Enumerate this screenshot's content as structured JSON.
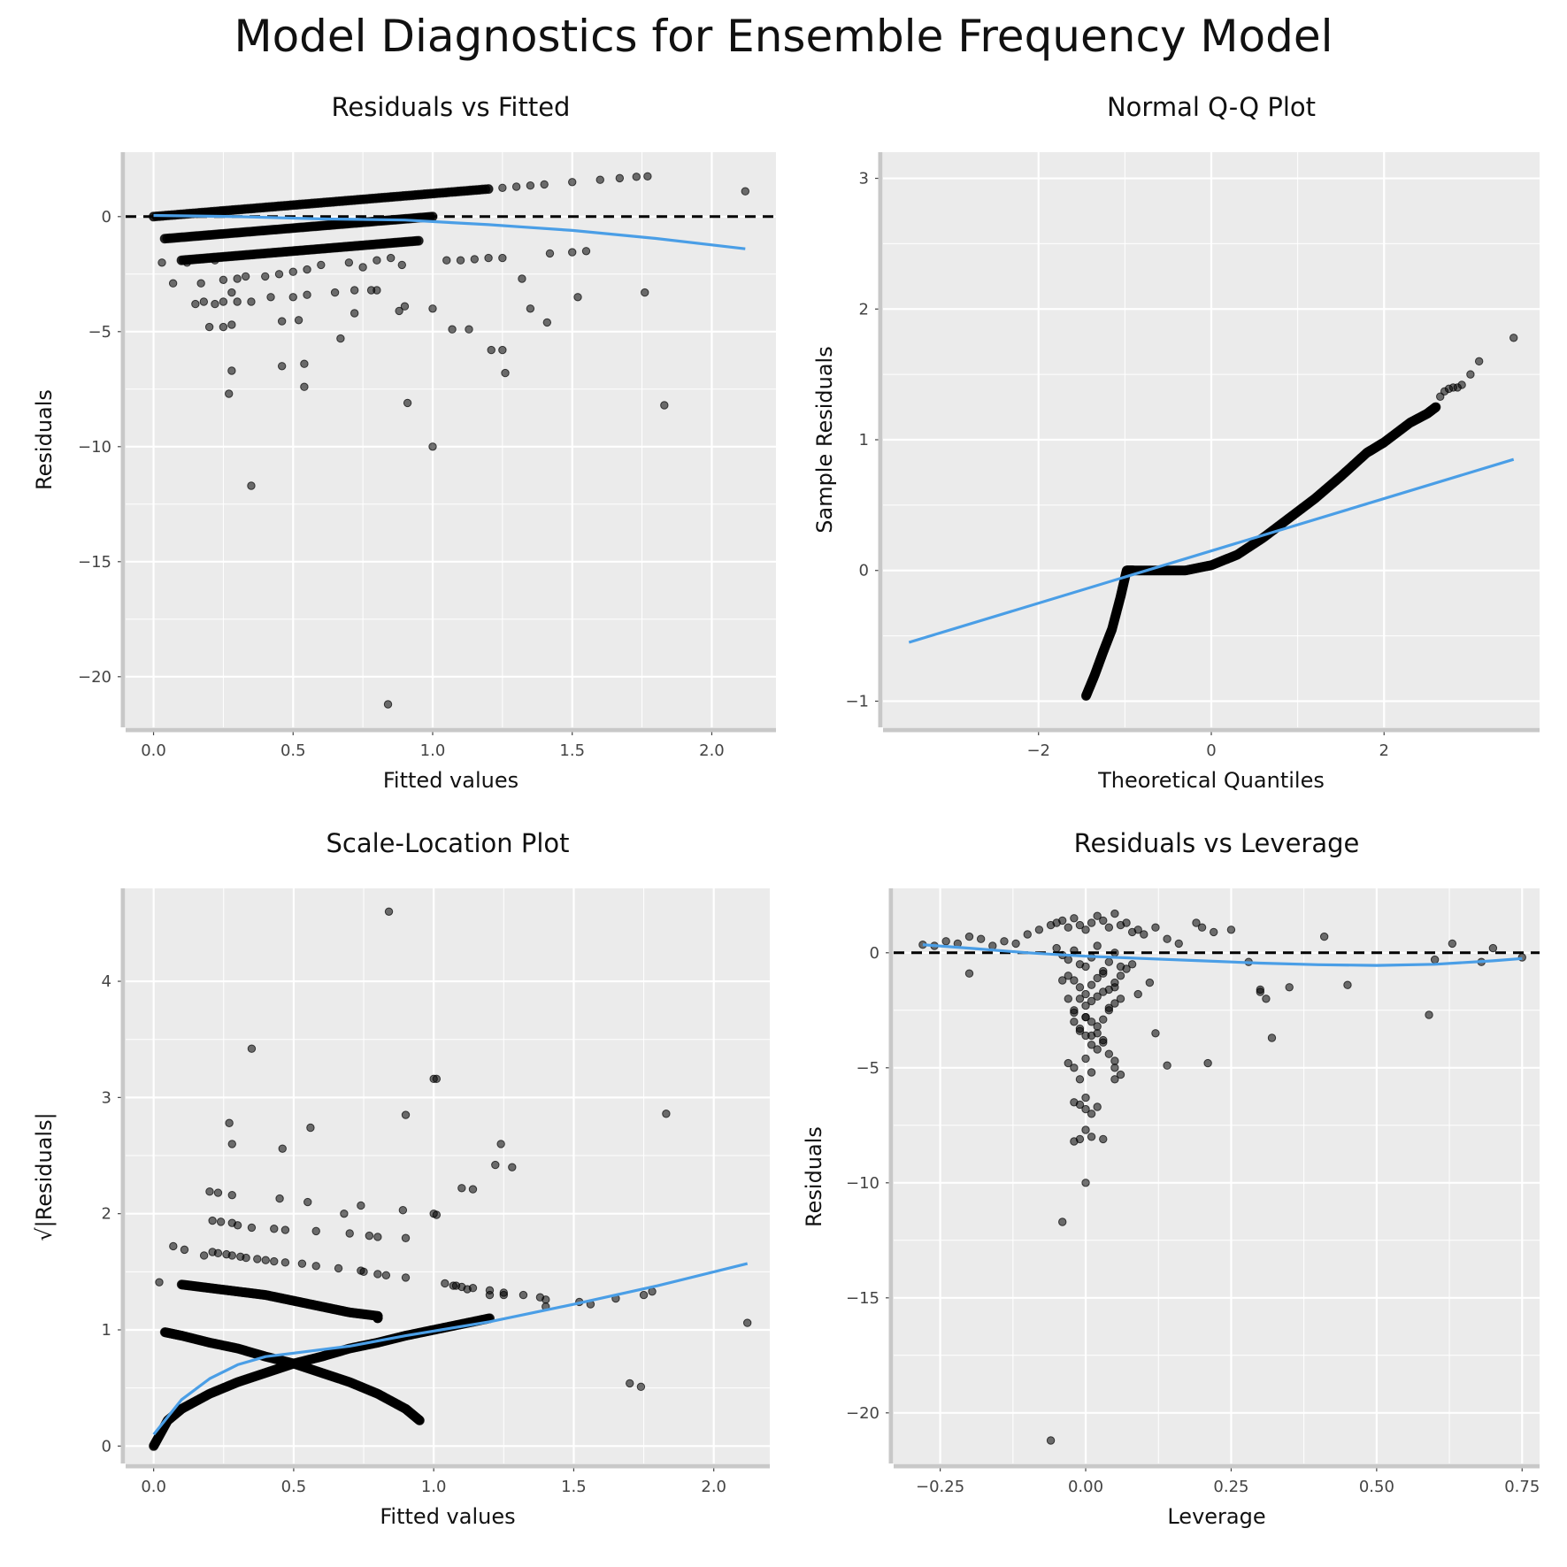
{
  "title": "Model Diagnostics for Ensemble Frequency Model",
  "colors": {
    "panel_bg": "#ebebeb",
    "grid": "#ffffff",
    "points": "#000000",
    "smooth": "#4a9ee6",
    "axis_line": "#c8c8c8",
    "refline": "#000000"
  },
  "chart_data": [
    {
      "type": "scatter",
      "title": "Residuals vs Fitted",
      "xlabel": "Fitted values",
      "ylabel": "Residuals",
      "xlim": [
        -0.1,
        2.23
      ],
      "ylim": [
        -22.2,
        2.8
      ],
      "xticks": [
        0.0,
        0.5,
        1.0,
        1.5,
        2.0
      ],
      "xtick_labels": [
        "0.0",
        "0.5",
        "1.0",
        "1.5",
        "2.0"
      ],
      "yticks": [
        -20,
        -15,
        -10,
        -5,
        0
      ],
      "ytick_labels": [
        "−20",
        "−15",
        "−10",
        "−5",
        "0"
      ],
      "grid": true,
      "reference_line": {
        "y": 0,
        "style": "dashed"
      },
      "series": [
        {
          "kind": "band",
          "x": [
            0.0,
            1.2
          ],
          "y": [
            0.0,
            1.2
          ]
        },
        {
          "kind": "band",
          "x": [
            0.04,
            1.0
          ],
          "y": [
            -0.96,
            0.0
          ]
        },
        {
          "kind": "band",
          "x": [
            0.1,
            0.95
          ],
          "y": [
            -1.9,
            -1.05
          ]
        },
        {
          "kind": "points",
          "x": [
            0.03,
            0.1,
            0.13,
            0.2,
            0.25,
            0.3,
            0.35,
            0.45,
            0.55,
            0.65,
            0.75,
            0.85,
            0.95,
            1.05,
            1.15,
            1.25,
            1.3,
            1.35,
            1.4,
            1.5,
            1.6,
            1.67,
            1.73,
            1.77,
            2.12,
            0.03,
            0.07,
            0.12,
            0.17,
            0.22,
            0.25,
            0.3,
            0.33,
            0.4,
            0.45,
            0.5,
            0.55,
            0.6,
            0.7,
            0.75,
            0.8,
            0.85,
            0.89,
            1.05,
            1.1,
            1.15,
            1.2,
            1.25,
            1.32,
            1.42,
            1.5,
            1.55,
            0.15,
            0.18,
            0.22,
            0.25,
            0.28,
            0.3,
            0.35,
            0.42,
            0.5,
            0.55,
            0.65,
            0.72,
            0.78,
            0.8,
            0.88,
            1.35,
            1.52,
            1.76,
            0.2,
            0.25,
            0.28,
            0.46,
            0.52,
            0.67,
            0.72,
            0.9,
            1.0,
            1.07,
            1.13,
            1.41,
            0.28,
            0.46,
            0.54,
            0.27,
            0.54,
            1.21,
            1.25,
            1.26,
            0.91,
            1.83,
            0.35,
            1.0,
            0.84
          ],
          "y": [
            0.03,
            0.1,
            0.13,
            0.2,
            0.25,
            0.3,
            0.35,
            0.45,
            0.55,
            0.65,
            0.75,
            0.85,
            0.95,
            1.05,
            1.15,
            1.25,
            1.3,
            1.35,
            1.4,
            1.5,
            1.6,
            1.67,
            1.73,
            1.75,
            1.1,
            -2.0,
            -2.9,
            -2.0,
            -2.9,
            -1.9,
            -2.75,
            -2.7,
            -2.6,
            -2.6,
            -2.5,
            -2.4,
            -2.3,
            -2.1,
            -2.0,
            -2.2,
            -1.9,
            -1.8,
            -2.1,
            -1.9,
            -1.9,
            -1.85,
            -1.8,
            -1.8,
            -2.7,
            -1.6,
            -1.55,
            -1.5,
            -3.8,
            -3.7,
            -3.8,
            -3.7,
            -3.3,
            -3.7,
            -3.7,
            -3.5,
            -3.5,
            -3.4,
            -3.3,
            -3.2,
            -3.2,
            -3.2,
            -4.1,
            -4.0,
            -3.5,
            -3.3,
            -4.8,
            -4.8,
            -4.7,
            -4.55,
            -4.5,
            -5.3,
            -4.2,
            -3.9,
            -4.0,
            -4.9,
            -4.9,
            -4.6,
            -6.7,
            -6.5,
            -6.4,
            -7.7,
            -7.4,
            -5.8,
            -5.8,
            -6.8,
            -8.1,
            -8.2,
            -11.7,
            -10.0,
            -21.2
          ]
        }
      ],
      "smooth": {
        "x": [
          0.0,
          0.3,
          0.6,
          0.9,
          1.2,
          1.5,
          1.8,
          2.12
        ],
        "y": [
          0.05,
          0.0,
          -0.1,
          -0.15,
          -0.35,
          -0.6,
          -0.95,
          -1.4
        ]
      }
    },
    {
      "type": "scatter",
      "title": "Normal Q-Q Plot",
      "xlabel": "Theoretical Quantiles",
      "ylabel": "Sample Residuals",
      "xlim": [
        -3.8,
        3.8
      ],
      "ylim": [
        -1.2,
        3.2
      ],
      "xticks": [
        -2,
        0,
        2
      ],
      "xtick_labels": [
        "−2",
        "0",
        "2"
      ],
      "yticks": [
        -1,
        0,
        1,
        2,
        3
      ],
      "ytick_labels": [
        "−1",
        "0",
        "1",
        "2",
        "3"
      ],
      "grid": true,
      "series": [
        {
          "kind": "curve",
          "x": [
            -1.45,
            -1.35,
            -1.25,
            -1.15,
            -1.05,
            -0.98,
            -0.9,
            -0.6,
            -0.3,
            0.0,
            0.3,
            0.6,
            0.9,
            1.2,
            1.5,
            1.8,
            2.0,
            2.3,
            2.5,
            2.6
          ],
          "y": [
            -0.96,
            -0.8,
            -0.62,
            -0.45,
            -0.2,
            0.0,
            0.0,
            0.0,
            0.0,
            0.04,
            0.12,
            0.25,
            0.4,
            0.55,
            0.72,
            0.9,
            0.98,
            1.13,
            1.2,
            1.25
          ]
        },
        {
          "kind": "points",
          "x": [
            2.65,
            2.7,
            2.75,
            2.8,
            2.85,
            2.9,
            3.0,
            3.1,
            3.5
          ],
          "y": [
            1.33,
            1.37,
            1.39,
            1.4,
            1.4,
            1.42,
            1.5,
            1.6,
            1.78
          ]
        }
      ],
      "smooth": {
        "x": [
          -3.5,
          3.5
        ],
        "y": [
          -0.55,
          0.85
        ]
      }
    },
    {
      "type": "scatter",
      "title": "Scale-Location Plot",
      "xlabel": "Fitted values",
      "ylabel": "√|Residuals|",
      "xlim": [
        -0.1,
        2.2
      ],
      "ylim": [
        -0.15,
        4.8
      ],
      "xticks": [
        0.0,
        0.5,
        1.0,
        1.5,
        2.0
      ],
      "xtick_labels": [
        "0.0",
        "0.5",
        "1.0",
        "1.5",
        "2.0"
      ],
      "yticks": [
        0,
        1,
        2,
        3,
        4
      ],
      "ytick_labels": [
        "0",
        "1",
        "2",
        "3",
        "4"
      ],
      "grid": true,
      "series": [
        {
          "kind": "curve",
          "x": [
            0.0,
            0.05,
            0.1,
            0.2,
            0.3,
            0.4,
            0.5,
            0.6,
            0.7,
            0.8,
            0.9,
            1.0,
            1.1,
            1.2
          ],
          "y": [
            0.0,
            0.22,
            0.32,
            0.45,
            0.55,
            0.63,
            0.71,
            0.77,
            0.84,
            0.89,
            0.95,
            1.0,
            1.05,
            1.1
          ]
        },
        {
          "kind": "curve",
          "x": [
            0.04,
            0.1,
            0.2,
            0.3,
            0.4,
            0.5,
            0.6,
            0.7,
            0.8,
            0.9,
            0.95
          ],
          "y": [
            0.98,
            0.95,
            0.89,
            0.84,
            0.77,
            0.71,
            0.63,
            0.55,
            0.45,
            0.32,
            0.22
          ]
        },
        {
          "kind": "curve",
          "x": [
            0.1,
            0.2,
            0.3,
            0.4,
            0.5,
            0.6,
            0.7,
            0.8,
            0.8
          ],
          "y": [
            1.39,
            1.36,
            1.33,
            1.3,
            1.25,
            1.2,
            1.15,
            1.12,
            1.1
          ]
        },
        {
          "kind": "points",
          "x": [
            0.02,
            0.07,
            0.11,
            0.18,
            0.21,
            0.23,
            0.26,
            0.28,
            0.31,
            0.33,
            0.37,
            0.4,
            0.43,
            0.47,
            0.53,
            0.58,
            0.66,
            0.74,
            0.75,
            0.8,
            0.83,
            0.9,
            1.04,
            1.07,
            1.1,
            1.14,
            1.2,
            1.25,
            1.32,
            1.38,
            1.4,
            1.52,
            1.56,
            1.65,
            1.75,
            1.78,
            2.12,
            0.21,
            0.24,
            0.28,
            0.3,
            0.35,
            0.43,
            0.47,
            0.58,
            0.7,
            0.77,
            0.8,
            0.9,
            1.0,
            1.08,
            1.12,
            1.2,
            1.25,
            1.4,
            0.2,
            0.23,
            0.28,
            0.45,
            0.55,
            0.68,
            0.74,
            0.89,
            1.01,
            1.1,
            1.14,
            1.22,
            1.28,
            0.27,
            0.28,
            0.46,
            0.56,
            0.9,
            1.01,
            1.24,
            1.83,
            0.35,
            1.0,
            0.84,
            1.7,
            1.74
          ],
          "y": [
            1.41,
            1.72,
            1.69,
            1.64,
            1.67,
            1.66,
            1.65,
            1.64,
            1.63,
            1.62,
            1.61,
            1.6,
            1.59,
            1.58,
            1.57,
            1.55,
            1.53,
            1.51,
            1.5,
            1.48,
            1.47,
            1.45,
            1.4,
            1.38,
            1.37,
            1.36,
            1.34,
            1.32,
            1.3,
            1.28,
            1.26,
            1.24,
            1.22,
            1.27,
            1.3,
            1.33,
            1.06,
            1.94,
            1.93,
            1.92,
            1.9,
            1.88,
            1.87,
            1.86,
            1.85,
            1.83,
            1.81,
            1.8,
            1.79,
            2.0,
            1.38,
            1.35,
            1.3,
            1.3,
            1.2,
            2.19,
            2.18,
            2.16,
            2.13,
            2.1,
            2.0,
            2.07,
            2.03,
            1.99,
            2.22,
            2.21,
            2.42,
            2.4,
            2.78,
            2.6,
            2.56,
            2.74,
            2.85,
            3.16,
            2.6,
            2.86,
            3.42,
            3.16,
            4.6,
            0.54,
            0.51
          ]
        }
      ],
      "smooth": {
        "x": [
          0.0,
          0.1,
          0.2,
          0.3,
          0.4,
          0.5,
          0.7,
          0.9,
          1.2,
          1.5,
          1.8,
          2.12
        ],
        "y": [
          0.1,
          0.4,
          0.58,
          0.7,
          0.77,
          0.8,
          0.86,
          0.95,
          1.07,
          1.22,
          1.38,
          1.57
        ]
      }
    },
    {
      "type": "scatter",
      "title": "Residuals vs Leverage",
      "xlabel": "Leverage",
      "ylabel": "Residuals",
      "xlim": [
        -0.33,
        0.78
      ],
      "ylim": [
        -22.2,
        2.8
      ],
      "xticks": [
        -0.25,
        0.0,
        0.25,
        0.5,
        0.75
      ],
      "xtick_labels": [
        "−0.25",
        "0.00",
        "0.25",
        "0.50",
        "0.75"
      ],
      "yticks": [
        -20,
        -15,
        -10,
        -5,
        0
      ],
      "ytick_labels": [
        "−20",
        "−15",
        "−10",
        "−5",
        "0"
      ],
      "grid": true,
      "reference_line": {
        "y": 0,
        "style": "dashed"
      },
      "series": [
        {
          "kind": "points",
          "x": [
            -0.28,
            -0.26,
            -0.24,
            -0.22,
            -0.2,
            -0.18,
            -0.16,
            -0.14,
            -0.12,
            -0.1,
            -0.08,
            -0.06,
            -0.05,
            -0.04,
            -0.03,
            -0.02,
            -0.01,
            0.0,
            0.01,
            0.02,
            0.03,
            0.04,
            0.05,
            0.06,
            0.07,
            0.08,
            0.09,
            0.1,
            0.12,
            0.14,
            0.16,
            0.19,
            0.2,
            0.22,
            0.25,
            0.28,
            0.3,
            0.35,
            0.41,
            0.45,
            0.6,
            0.63,
            0.68,
            0.7,
            0.75,
            0.59,
            0.32,
            0.3,
            0.31,
            0.21,
            0.14,
            0.12,
            0.11,
            0.09,
            -0.05,
            -0.04,
            -0.03,
            -0.02,
            -0.01,
            0.0,
            0.01,
            0.02,
            0.03,
            0.04,
            0.05,
            0.06,
            -0.03,
            -0.02,
            -0.01,
            0.0,
            0.01,
            0.02,
            0.03,
            0.04,
            0.05,
            -0.01,
            0.0,
            0.01,
            0.02,
            0.03,
            0.04,
            0.05,
            0.06,
            0.07,
            0.08,
            -0.02,
            0.0,
            0.01,
            0.02,
            0.03,
            0.04,
            0.05,
            0.06,
            -0.01,
            0.0,
            0.02,
            0.03,
            -0.04,
            -0.03,
            -0.02,
            0.01,
            0.02,
            0.03,
            0.04,
            0.05,
            -0.02,
            -0.01,
            0.0,
            0.01,
            -0.03,
            -0.02,
            -0.01,
            0.0,
            0.01,
            0.05,
            0.06,
            -0.2,
            -0.02,
            -0.01,
            0.0,
            0.01,
            0.02,
            -0.01,
            0.0,
            0.01,
            -0.02,
            0.0,
            0.03,
            -0.04,
            0.05,
            0.0,
            -0.06
          ],
          "y": [
            0.35,
            0.3,
            0.5,
            0.4,
            0.7,
            0.6,
            0.3,
            0.5,
            0.4,
            0.8,
            1.0,
            1.2,
            1.3,
            1.4,
            1.1,
            1.5,
            1.2,
            1.0,
            1.3,
            1.6,
            1.4,
            1.1,
            1.7,
            1.2,
            1.3,
            0.9,
            1.0,
            0.8,
            1.1,
            0.6,
            0.4,
            1.3,
            1.1,
            0.9,
            1.0,
            -0.4,
            -1.7,
            -1.5,
            0.7,
            -1.4,
            -0.3,
            0.4,
            -0.4,
            0.2,
            -0.2,
            -2.7,
            -3.7,
            -1.6,
            -2.0,
            -4.8,
            -4.9,
            -3.5,
            -1.3,
            -1.8,
            0.2,
            -0.1,
            -0.3,
            0.1,
            -0.5,
            -0.6,
            -0.2,
            0.3,
            -0.8,
            -0.4,
            0.0,
            -0.6,
            -1.0,
            -1.2,
            -1.5,
            -1.8,
            -1.4,
            -1.1,
            -0.9,
            -1.6,
            -1.3,
            -2.0,
            -2.3,
            -2.1,
            -1.9,
            -1.7,
            -2.4,
            -1.5,
            -1.0,
            -0.7,
            -0.5,
            -2.6,
            -2.8,
            -3.0,
            -3.2,
            -2.9,
            -2.5,
            -2.2,
            -2.0,
            -3.4,
            -3.6,
            -3.5,
            -3.8,
            -1.2,
            -2.0,
            -2.5,
            -4.0,
            -4.2,
            -3.9,
            -4.4,
            -4.7,
            -3.0,
            -3.3,
            -2.8,
            -3.6,
            -4.8,
            -5.0,
            -5.5,
            -4.6,
            -5.2,
            -5.0,
            -5.3,
            -0.9,
            -6.5,
            -6.6,
            -6.8,
            -7.0,
            -6.7,
            -8.1,
            -7.7,
            -8.0,
            -8.2,
            -10.0,
            -8.1,
            -11.7,
            -5.5,
            -6.3,
            -21.2
          ]
        }
      ],
      "smooth": {
        "x": [
          -0.28,
          -0.2,
          -0.1,
          0.0,
          0.1,
          0.2,
          0.3,
          0.4,
          0.5,
          0.6,
          0.7,
          0.75
        ],
        "y": [
          0.35,
          0.2,
          0.0,
          -0.15,
          -0.25,
          -0.35,
          -0.45,
          -0.52,
          -0.55,
          -0.5,
          -0.35,
          -0.25
        ]
      }
    }
  ]
}
